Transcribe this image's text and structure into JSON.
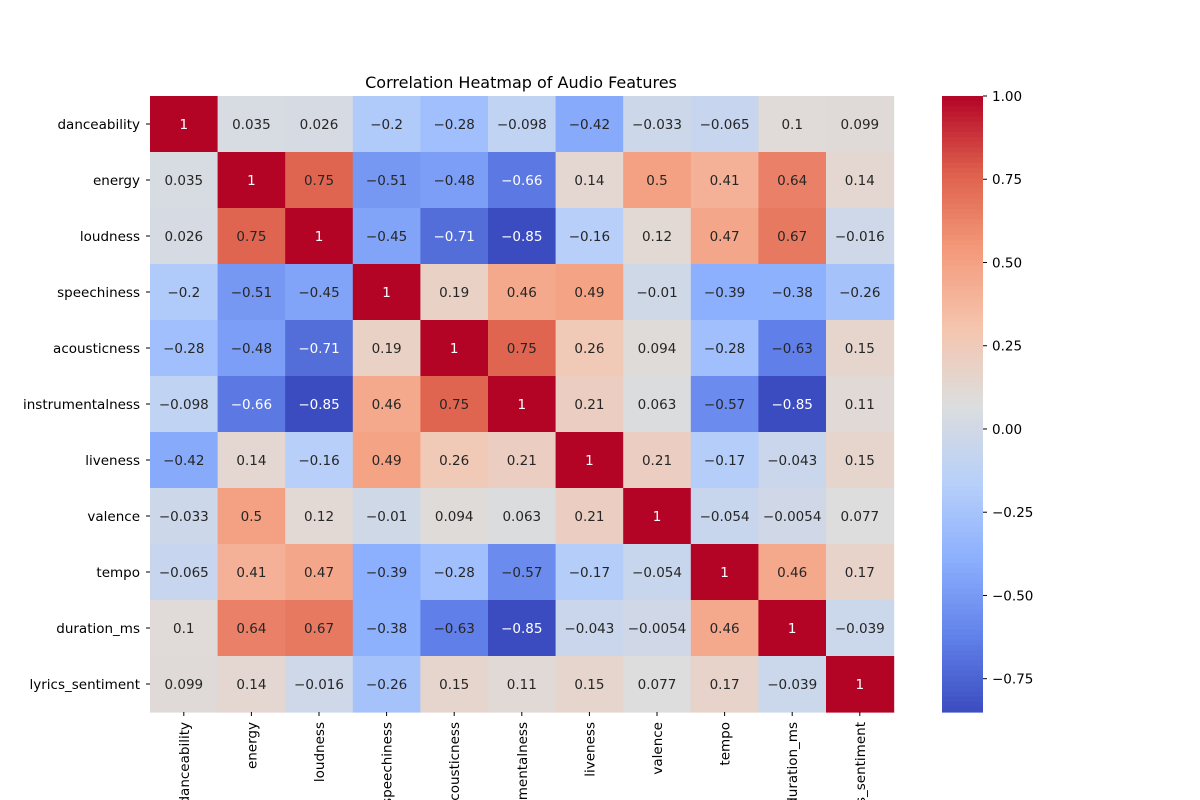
{
  "chart_data": {
    "type": "heatmap",
    "title": "Correlation Heatmap of Audio Features",
    "row_labels": [
      "danceability",
      "energy",
      "loudness",
      "speechiness",
      "acousticness",
      "instrumentalness",
      "liveness",
      "valence",
      "tempo",
      "duration_ms",
      "lyrics_sentiment"
    ],
    "col_labels": [
      "danceability",
      "energy",
      "loudness",
      "speechiness",
      "acousticness",
      "instrumentalness",
      "liveness",
      "valence",
      "tempo",
      "duration_ms",
      "lyrics_sentiment"
    ],
    "values": [
      [
        1,
        0.035,
        0.026,
        -0.2,
        -0.28,
        -0.098,
        -0.42,
        -0.033,
        -0.065,
        0.1,
        0.099
      ],
      [
        0.035,
        1,
        0.75,
        -0.51,
        -0.48,
        -0.66,
        0.14,
        0.5,
        0.41,
        0.64,
        0.14
      ],
      [
        0.026,
        0.75,
        1,
        -0.45,
        -0.71,
        -0.85,
        -0.16,
        0.12,
        0.47,
        0.67,
        -0.016
      ],
      [
        -0.2,
        -0.51,
        -0.45,
        1,
        0.19,
        0.46,
        0.49,
        -0.01,
        -0.39,
        -0.38,
        -0.26
      ],
      [
        -0.28,
        -0.48,
        -0.71,
        0.19,
        1,
        0.75,
        0.26,
        0.094,
        -0.28,
        -0.63,
        0.15
      ],
      [
        -0.098,
        -0.66,
        -0.85,
        0.46,
        0.75,
        1,
        0.21,
        0.063,
        -0.57,
        -0.85,
        0.11
      ],
      [
        -0.42,
        0.14,
        -0.16,
        0.49,
        0.26,
        0.21,
        1,
        0.21,
        -0.17,
        -0.043,
        0.15
      ],
      [
        -0.033,
        0.5,
        0.12,
        -0.01,
        0.094,
        0.063,
        0.21,
        1,
        -0.054,
        -0.0054,
        0.077
      ],
      [
        -0.065,
        0.41,
        0.47,
        -0.39,
        -0.28,
        -0.57,
        -0.17,
        -0.054,
        1,
        0.46,
        0.17
      ],
      [
        0.1,
        0.64,
        0.67,
        -0.38,
        -0.63,
        -0.85,
        -0.043,
        -0.0054,
        0.46,
        1,
        -0.039
      ],
      [
        0.099,
        0.14,
        -0.016,
        -0.26,
        0.15,
        0.11,
        0.15,
        0.077,
        0.17,
        -0.039,
        1
      ]
    ],
    "colorbar": {
      "colormap": "coolwarm",
      "vmin": -0.85,
      "vmax": 1,
      "ticks": [
        1.0,
        0.75,
        0.5,
        0.25,
        0.0,
        -0.25,
        -0.5,
        -0.75
      ],
      "tick_labels": [
        "1.00",
        "0.75",
        "0.50",
        "0.25",
        "0.00",
        "−0.25",
        "−0.50",
        "−0.75"
      ]
    }
  }
}
